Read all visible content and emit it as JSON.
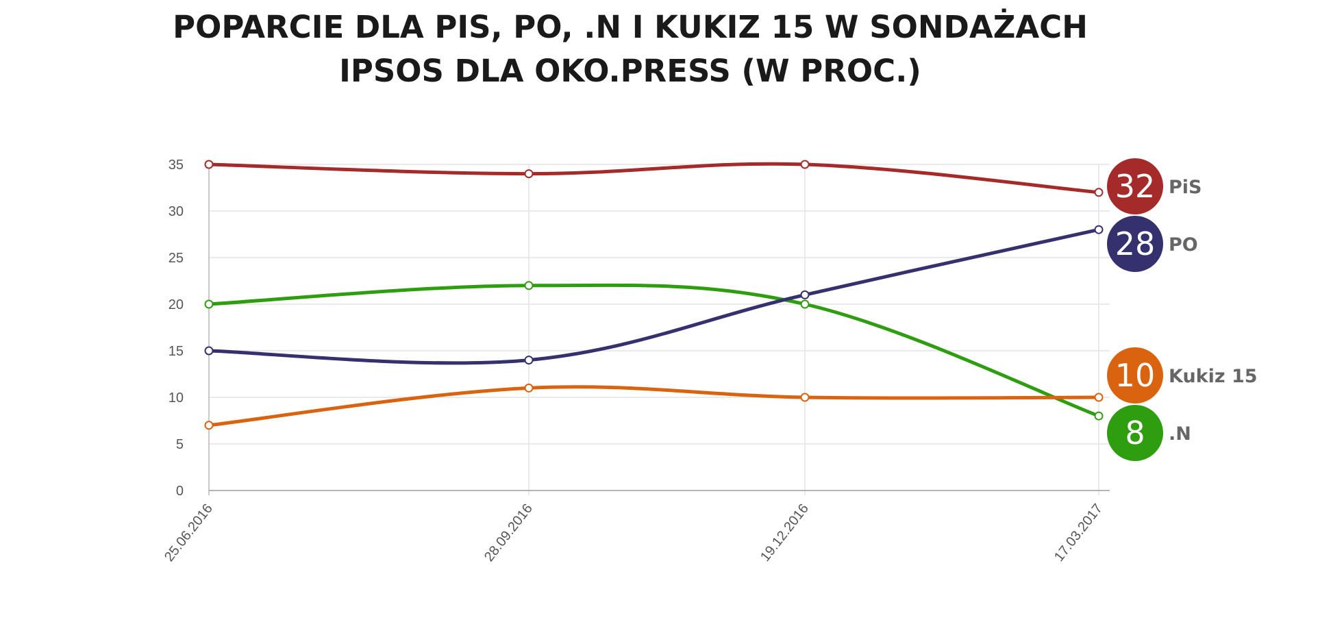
{
  "chart_data": {
    "type": "line",
    "title_lines": [
      "POPARCIE DLA PIS, PO, .N I KUKIZ 15 W SONDAŻACH",
      "IPSOS DLA OKO.PRESS (W PROC.)"
    ],
    "x": [
      "25.06.2016",
      "28.09.2016",
      "19.12.2016",
      "17.03.2017"
    ],
    "xlabel": "",
    "ylabel": "",
    "ylim": [
      0,
      35
    ],
    "yticks": [
      0,
      5,
      10,
      15,
      20,
      25,
      30,
      35
    ],
    "grid": true,
    "legend": "end-of-line badges",
    "series": [
      {
        "name": "PiS",
        "color": "#a52a2a",
        "values": [
          35,
          34,
          35,
          32
        ],
        "end_label": "32"
      },
      {
        "name": "PO",
        "color": "#35306e",
        "values": [
          15,
          14,
          21,
          28
        ],
        "end_label": "28"
      },
      {
        "name": "Kukiz 15",
        "color": "#d9630f",
        "values": [
          7,
          11,
          10,
          10
        ],
        "end_label": "10"
      },
      {
        "name": ".N",
        "color": "#2e9e10",
        "values": [
          20,
          22,
          20,
          8
        ],
        "end_label": "8"
      }
    ]
  }
}
